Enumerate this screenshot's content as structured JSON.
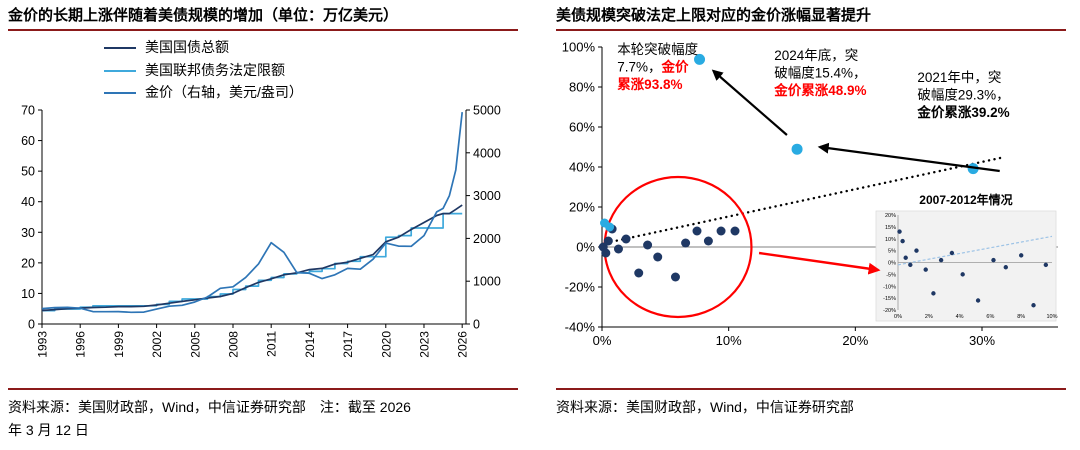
{
  "page": {
    "accent_rule_color": "#8B1A1A",
    "red": "#FF0000",
    "navy": "#1F3864",
    "light_blue": "#3FA9DC",
    "mid_blue": "#2E75B6",
    "cyan": "#29ABE2"
  },
  "left_panel": {
    "title": "金价的长期上涨伴随着美债规模的增加（单位：万亿美元）",
    "source_line1": "资料来源：美国财政部，Wind，中信证券研究部　注：截至 2026",
    "source_line2": "年 3 月 12 日"
  },
  "right_panel": {
    "title": "美债规模突破法定上限对应的金价涨幅显著提升",
    "source_line1": "资料来源：美国财政部，Wind，中信证券研究部"
  },
  "chart_data": [
    {
      "type": "line",
      "title": "金价的长期上涨伴随着美债规模的增加（单位：万亿美元）",
      "grid": false,
      "legend_position": "top-left",
      "x": [
        1993,
        1994,
        1995,
        1996,
        1997,
        1998,
        1999,
        2000,
        2001,
        2002,
        2003,
        2004,
        2005,
        2006,
        2007,
        2008,
        2009,
        2010,
        2011,
        2012,
        2013,
        2014,
        2015,
        2016,
        2017,
        2018,
        2019,
        2020,
        2021,
        2022,
        2023,
        2024,
        2024.5,
        2025,
        2025.5,
        2026
      ],
      "x_ticks": [
        1993,
        1996,
        1999,
        2002,
        2005,
        2008,
        2011,
        2014,
        2017,
        2020,
        2023,
        2026
      ],
      "y_left": {
        "min": 0,
        "max": 70,
        "ticks": [
          0,
          10,
          20,
          30,
          40,
          50,
          60,
          70
        ]
      },
      "y_right": {
        "min": 0,
        "max": 5000,
        "ticks": [
          0,
          1000,
          2000,
          3000,
          4000,
          5000
        ]
      },
      "series": [
        {
          "name": "美国国债总额",
          "axis": "left",
          "color": "#1F3864",
          "step": false,
          "values": [
            4.4,
            4.7,
            5,
            5.2,
            5.4,
            5.5,
            5.7,
            5.7,
            5.8,
            6.2,
            6.8,
            7.4,
            7.9,
            8.5,
            9,
            10,
            11.9,
            13.6,
            14.8,
            16.1,
            16.7,
            17.8,
            18.2,
            19.6,
            20.2,
            21.5,
            22.7,
            26.9,
            28.4,
            30.9,
            33.2,
            35.5,
            36.1,
            36.1,
            37.5,
            38.9
          ]
        },
        {
          "name": "美国联邦债务法定限额",
          "axis": "left",
          "color": "#3FA9DC",
          "step": true,
          "values": [
            4.37,
            4.9,
            4.9,
            5.5,
            5.95,
            5.95,
            5.95,
            5.95,
            5.95,
            6.4,
            7.38,
            8.18,
            8.18,
            8.97,
            9.82,
            11.3,
            12.4,
            14.3,
            15.2,
            16.4,
            16.7,
            17.2,
            18.1,
            19.8,
            20.5,
            22,
            22,
            28.4,
            28.9,
            31.4,
            31.4,
            31.4,
            36.1,
            36.1,
            36.1,
            36.1
          ]
        },
        {
          "name": "金价（右轴，美元/盎司）",
          "axis": "right",
          "color": "#2E75B6",
          "step": false,
          "values": [
            360,
            384,
            387,
            369,
            290,
            288,
            290,
            274,
            277,
            347,
            416,
            438,
            513,
            632,
            834,
            870,
            1088,
            1405,
            1900,
            1675,
            1205,
            1184,
            1060,
            1150,
            1300,
            1280,
            1515,
            1890,
            1820,
            1815,
            2065,
            2620,
            2700,
            3000,
            3600,
            4950
          ]
        }
      ]
    },
    {
      "type": "scatter",
      "title": "美债规模突破法定上限对应的金价涨幅显著提升",
      "x_axis": {
        "min": 0,
        "max": 36,
        "tick_values": [
          0,
          10,
          20,
          30
        ],
        "tick_labels": [
          "0%",
          "10%",
          "20%",
          "30%"
        ]
      },
      "y_axis": {
        "min": -40,
        "max": 100,
        "tick_values": [
          100,
          80,
          60,
          40,
          20,
          0,
          -20,
          -40
        ],
        "tick_labels": [
          "100%",
          "80%",
          "60%",
          "40%",
          "20%",
          "0%",
          "-20%",
          "-40%"
        ]
      },
      "series": [
        {
          "name": "历史突破时期",
          "color": "#1F3864",
          "radius": 4.5,
          "points": [
            [
              0.1,
              0
            ],
            [
              0.3,
              -3
            ],
            [
              0.5,
              3
            ],
            [
              0.8,
              9
            ],
            [
              1.3,
              -1
            ],
            [
              1.9,
              4
            ],
            [
              2.9,
              -13
            ],
            [
              3.6,
              1
            ],
            [
              4.4,
              -5
            ],
            [
              5.8,
              -15
            ],
            [
              6.6,
              2
            ],
            [
              7.5,
              8
            ],
            [
              8.4,
              3
            ],
            [
              9.4,
              8
            ],
            [
              10.5,
              8
            ]
          ]
        },
        {
          "name": "近年突破时期",
          "color": "#29ABE2",
          "radius": 4.5,
          "points": [
            [
              0.2,
              12
            ],
            [
              0.6,
              10
            ]
          ]
        },
        {
          "name": "重点标注时期",
          "color": "#29ABE2",
          "radius": 5.5,
          "points": [
            [
              7.7,
              93.8
            ],
            [
              15.4,
              48.9
            ],
            [
              29.3,
              39.2
            ]
          ]
        }
      ],
      "trendline": {
        "from": [
          0.3,
          2
        ],
        "to": [
          31.8,
          45
        ],
        "color": "#000000",
        "style": "dotted"
      },
      "highlight_circle": {
        "cx": 6.0,
        "cy": 0,
        "rx": 5.8,
        "ry": 35,
        "color": "#FF0000"
      },
      "arrows": [
        {
          "name": "arrow-2024-to-current",
          "from": [
            14.6,
            56
          ],
          "to": [
            8.8,
            88
          ],
          "color": "#000000"
        },
        {
          "name": "arrow-2021-to-2024",
          "from": [
            31.4,
            38
          ],
          "to": [
            17.2,
            50
          ],
          "color": "#000000"
        },
        {
          "name": "arrow-circle-to-inset",
          "from": [
            12.4,
            -3
          ],
          "to": [
            21.8,
            -11.5
          ],
          "color": "#FF0000"
        }
      ],
      "annotations": [
        {
          "name": "current-episode-note",
          "pos": [
            1.2,
            102
          ],
          "lines": [
            [
              {
                "t": "本轮突破幅度",
                "c": "#000000",
                "b": 0
              }
            ],
            [
              {
                "t": "7.7%，",
                "c": "#000000",
                "b": 0
              },
              {
                "t": "金价",
                "c": "#FF0000",
                "b": 1
              }
            ],
            [
              {
                "t": "累涨93.8%",
                "c": "#FF0000",
                "b": 1
              }
            ]
          ]
        },
        {
          "name": "late-2024-note",
          "pos": [
            13.6,
            99
          ],
          "lines": [
            [
              {
                "t": "2024年底，突",
                "c": "#000000",
                "b": 0
              }
            ],
            [
              {
                "t": "破幅度15.4%，",
                "c": "#000000",
                "b": 0
              }
            ],
            [
              {
                "t": "金价累涨48.9%",
                "c": "#FF0000",
                "b": 1
              }
            ]
          ]
        },
        {
          "name": "mid-2021-note",
          "pos": [
            24.9,
            88
          ],
          "lines": [
            [
              {
                "t": "2021年中，突",
                "c": "#000000",
                "b": 0
              }
            ],
            [
              {
                "t": "破幅度29.3%，",
                "c": "#000000",
                "b": 0
              }
            ],
            [
              {
                "t": "金价累涨39.2%",
                "c": "#000000",
                "b": 1
              }
            ]
          ]
        }
      ],
      "inset": {
        "title": "2007-2012年情况",
        "type": "scatter",
        "background": "#F2F2F2",
        "point_color": "#1F3864",
        "x_axis": {
          "min": 0,
          "max": 10,
          "tick_values": [
            0,
            2,
            4,
            6,
            8,
            10
          ],
          "tick_labels": [
            "0%",
            "2%",
            "4%",
            "6%",
            "8%",
            "10%"
          ]
        },
        "y_axis": {
          "min": -20,
          "max": 20,
          "tick_values": [
            20,
            15,
            10,
            5,
            0,
            -5,
            -10,
            -15,
            -20
          ],
          "tick_labels": [
            "20%",
            "15%",
            "10%",
            "5%",
            "0%",
            "-5%",
            "-10%",
            "-15%",
            "-20%"
          ]
        },
        "points": [
          [
            0.1,
            13
          ],
          [
            0.3,
            9
          ],
          [
            0.5,
            2
          ],
          [
            0.8,
            -1
          ],
          [
            1.2,
            5
          ],
          [
            1.8,
            -3
          ],
          [
            2.3,
            -13
          ],
          [
            2.8,
            1
          ],
          [
            3.5,
            4
          ],
          [
            4.2,
            -5
          ],
          [
            5.2,
            -16
          ],
          [
            6.2,
            1
          ],
          [
            7,
            -2
          ],
          [
            8,
            3
          ],
          [
            8.8,
            -18
          ],
          [
            9.6,
            -1
          ]
        ],
        "trendline": {
          "from": [
            0,
            -1
          ],
          "to": [
            10,
            11
          ],
          "color": "#9DC3E6",
          "style": "dashed"
        }
      }
    }
  ]
}
